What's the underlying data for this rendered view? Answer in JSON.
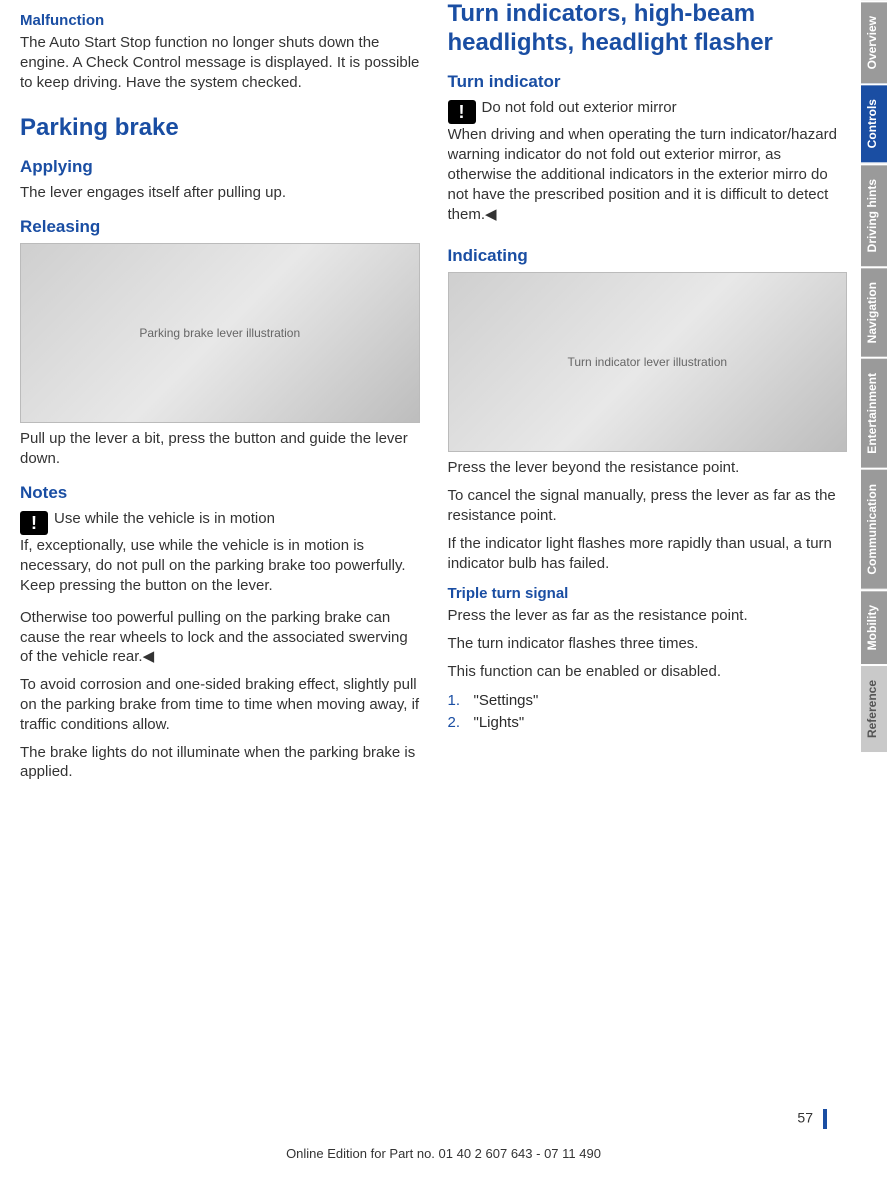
{
  "colors": {
    "heading": "#1a4ea3",
    "body": "#333333",
    "tab_inactive_bg": "#9a9a9a",
    "tab_active_bg": "#1a4ea3",
    "tab_ref_bg": "#c9c9c9"
  },
  "left": {
    "malfunction": {
      "title": "Malfunction",
      "text": "The Auto Start Stop function no longer shuts down the engine. A Check Control message is displayed. It is possible to keep driving. Have the system checked."
    },
    "parking": {
      "title": "Parking brake",
      "applying": {
        "title": "Applying",
        "text": "The lever engages itself after pulling up."
      },
      "releasing": {
        "title": "Releasing",
        "img_alt": "Parking brake lever illustration",
        "text": "Pull up the lever a bit, press the button and guide the lever down."
      },
      "notes": {
        "title": "Notes",
        "warn_title": "Use while the vehicle is in motion",
        "warn_body": "If, exceptionally, use while the vehicle is in motion is necessary, do not pull on the parking brake too powerfully. Keep pressing the button on the lever.",
        "p2": "Otherwise too powerful pulling on the parking brake can cause the rear wheels to lock and the associated swerving of the vehicle rear.◀",
        "p3": "To avoid corrosion and one-sided braking effect, slightly pull on the parking brake from time to time when moving away, if traffic conditions allow.",
        "p4": "The brake lights do not illuminate when the parking brake is applied."
      }
    }
  },
  "right": {
    "turn": {
      "title": "Turn indicators, high-beam headlights, headlight flasher",
      "indicator": {
        "title": "Turn indicator",
        "warn_title": "Do not fold out exterior mirror",
        "warn_body": "When driving and when operating the turn indicator/hazard warning indicator do not fold out exterior mirror, as otherwise the additional indicators in the exterior mirro do not have the prescribed position and it is difficult to detect them.◀"
      },
      "indicating": {
        "title": "Indicating",
        "img_alt": "Turn indicator lever illustration",
        "p1": "Press the lever beyond the resistance point.",
        "p2": "To cancel the signal manually, press the lever as far as the resistance point.",
        "p3": "If the indicator light flashes more rapidly than usual, a turn indicator bulb has failed."
      },
      "triple": {
        "title": "Triple turn signal",
        "p1": "Press the lever as far as the resistance point.",
        "p2": "The turn indicator flashes three times.",
        "p3": "This function can be enabled or disabled.",
        "steps": [
          "\"Settings\"",
          "\"Lights\""
        ]
      }
    }
  },
  "tabs": [
    "Overview",
    "Controls",
    "Driving hints",
    "Navigation",
    "Entertainment",
    "Communication",
    "Mobility",
    "Reference"
  ],
  "tabs_active_index": 1,
  "page_number": "57",
  "footer": "Online Edition for Part no. 01 40 2 607 643 - 07 11 490"
}
